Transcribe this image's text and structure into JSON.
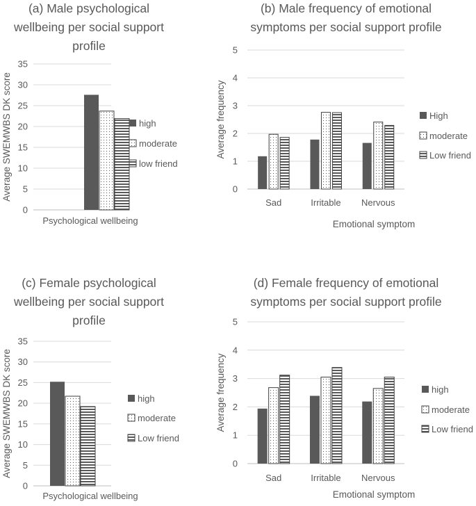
{
  "chart_data": [
    {
      "type": "bar",
      "title_lines": [
        "(a) Male psychological",
        "wellbeing per social support",
        "profile"
      ],
      "xlabel": "",
      "ylabel": "Average SWEMWBS DK score",
      "ylim": [
        0,
        35
      ],
      "yticks": [
        "0",
        "5",
        "10",
        "15",
        "20",
        "25",
        "30",
        "35"
      ],
      "categories": [
        "Psychological wellbeing"
      ],
      "series": [
        {
          "name": "high",
          "pattern": "solid",
          "values": [
            27.6
          ]
        },
        {
          "name": "moderate",
          "pattern": "dots",
          "values": [
            23.7
          ]
        },
        {
          "name": "low friend",
          "pattern": "hstripes",
          "values": [
            21.9
          ]
        }
      ],
      "grid": true,
      "legend": "right"
    },
    {
      "type": "bar",
      "title_lines": [
        "(b) Male frequency of  emotional",
        "symptoms per social support profile"
      ],
      "xlabel": "Emotional symptom",
      "ylabel": "Average frequency",
      "ylim": [
        0,
        5
      ],
      "yticks": [
        "0",
        "1",
        "2",
        "3",
        "4",
        "5"
      ],
      "categories": [
        "Sad",
        "Irritable",
        "Nervous"
      ],
      "series": [
        {
          "name": "High",
          "pattern": "solid",
          "values": [
            1.18,
            1.78,
            1.66
          ]
        },
        {
          "name": "moderate",
          "pattern": "dots",
          "values": [
            1.97,
            2.76,
            2.41
          ]
        },
        {
          "name": "Low friend",
          "pattern": "hstripes",
          "values": [
            1.86,
            2.75,
            2.29
          ]
        }
      ],
      "grid": true,
      "legend": "right"
    },
    {
      "type": "bar",
      "title_lines": [
        "(c) Female  psychological",
        "wellbeing per social support",
        "profile"
      ],
      "xlabel": "",
      "ylabel": "Average SWEMWBS DK score",
      "ylim": [
        0,
        35
      ],
      "yticks": [
        "0",
        "5",
        "10",
        "15",
        "20",
        "25",
        "30",
        "35"
      ],
      "categories": [
        "Psychological wellbeing"
      ],
      "series": [
        {
          "name": "high",
          "pattern": "solid",
          "values": [
            25.2
          ]
        },
        {
          "name": "moderate",
          "pattern": "dots",
          "values": [
            21.7
          ]
        },
        {
          "name": "Low friend",
          "pattern": "hstripes",
          "values": [
            19.2
          ]
        }
      ],
      "grid": true,
      "legend": "right"
    },
    {
      "type": "bar",
      "title_lines": [
        "(d) Female frequency of emotional",
        "symptoms per social support profile"
      ],
      "xlabel": "Emotional symptom",
      "ylabel": "Average frequency",
      "ylim": [
        0,
        5
      ],
      "yticks": [
        "0",
        "1",
        "2",
        "3",
        "4",
        "5"
      ],
      "categories": [
        "Sad",
        "Irritable",
        "Nervous"
      ],
      "series": [
        {
          "name": "high",
          "pattern": "solid",
          "values": [
            1.94,
            2.39,
            2.19
          ]
        },
        {
          "name": "moderate",
          "pattern": "dots",
          "values": [
            2.68,
            3.05,
            2.65
          ]
        },
        {
          "name": "Low friend",
          "pattern": "hstripes",
          "values": [
            3.12,
            3.39,
            3.05
          ]
        }
      ],
      "grid": true,
      "legend": "right"
    }
  ]
}
